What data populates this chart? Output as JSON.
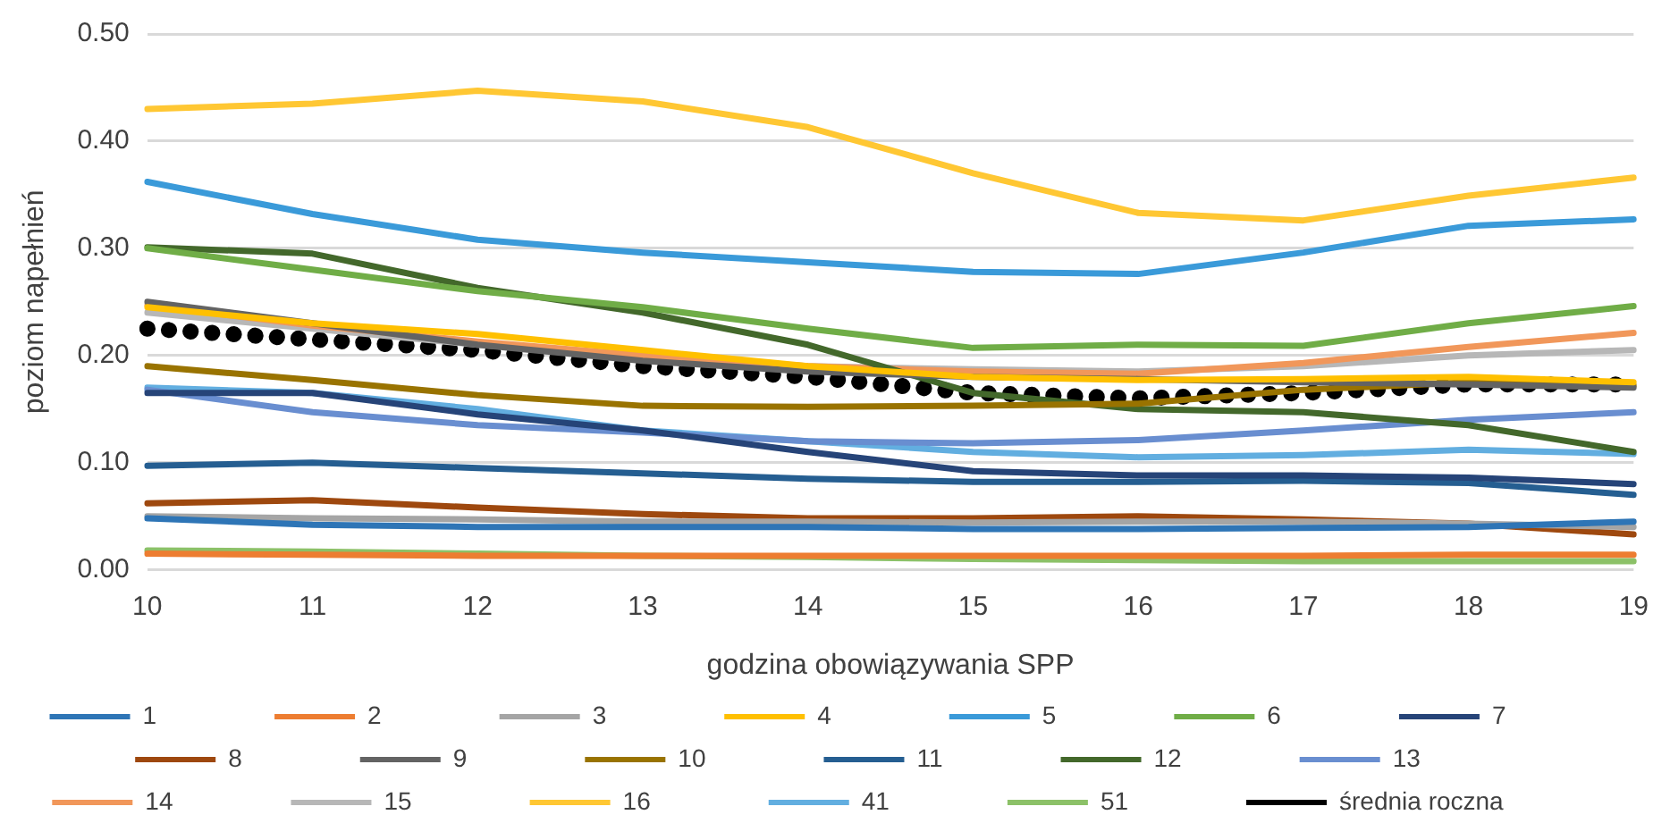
{
  "chart_data": {
    "type": "line",
    "xlabel": "godzina obowiązywania SPP",
    "ylabel": "poziom napełnień",
    "categories": [
      "10",
      "11",
      "12",
      "13",
      "14",
      "15",
      "16",
      "17",
      "18",
      "19"
    ],
    "ylim": [
      0,
      0.5
    ],
    "yticks": [
      {
        "value": 0,
        "label": "0.00"
      },
      {
        "value": 0.1,
        "label": "0.10"
      },
      {
        "value": 0.2,
        "label": "0.20"
      },
      {
        "value": 0.3,
        "label": "0.30"
      },
      {
        "value": 0.4,
        "label": "0.40"
      },
      {
        "value": 0.5,
        "label": "0.50"
      }
    ],
    "grid": "y",
    "legend": "bottom",
    "marker": "none",
    "line_style": "solid",
    "series": [
      {
        "name": "1",
        "color": "#2e75b6",
        "values": [
          0.048,
          0.042,
          0.04,
          0.04,
          0.04,
          0.038,
          0.038,
          0.039,
          0.04,
          0.045
        ]
      },
      {
        "name": "2",
        "color": "#ed7d31",
        "values": [
          0.015,
          0.014,
          0.013,
          0.013,
          0.013,
          0.013,
          0.013,
          0.013,
          0.014,
          0.014
        ]
      },
      {
        "name": "3",
        "color": "#a5a5a5",
        "values": [
          0.05,
          0.048,
          0.047,
          0.045,
          0.045,
          0.044,
          0.045,
          0.045,
          0.043,
          0.04
        ]
      },
      {
        "name": "4",
        "color": "#ffc000",
        "values": [
          0.245,
          0.23,
          0.22,
          0.205,
          0.19,
          0.18,
          0.177,
          0.178,
          0.18,
          0.175
        ]
      },
      {
        "name": "5",
        "color": "#3a9ad9",
        "values": [
          0.362,
          0.332,
          0.308,
          0.296,
          0.287,
          0.278,
          0.276,
          0.296,
          0.321,
          0.327
        ]
      },
      {
        "name": "6",
        "color": "#70ad47",
        "values": [
          0.3,
          0.28,
          0.26,
          0.245,
          0.225,
          0.207,
          0.21,
          0.209,
          0.23,
          0.246
        ]
      },
      {
        "name": "7",
        "color": "#264478",
        "values": [
          0.165,
          0.165,
          0.145,
          0.13,
          0.11,
          0.092,
          0.088,
          0.088,
          0.086,
          0.08
        ]
      },
      {
        "name": "8",
        "color": "#9e480e",
        "values": [
          0.062,
          0.065,
          0.058,
          0.052,
          0.048,
          0.048,
          0.05,
          0.047,
          0.043,
          0.033
        ]
      },
      {
        "name": "9",
        "color": "#636363",
        "values": [
          0.25,
          0.23,
          0.21,
          0.195,
          0.185,
          0.18,
          0.178,
          0.175,
          0.173,
          0.17
        ]
      },
      {
        "name": "10",
        "color": "#997300",
        "values": [
          0.19,
          0.177,
          0.163,
          0.153,
          0.152,
          0.153,
          0.155,
          0.168,
          0.175,
          0.172
        ]
      },
      {
        "name": "11",
        "color": "#255e91",
        "values": [
          0.097,
          0.1,
          0.095,
          0.09,
          0.085,
          0.082,
          0.082,
          0.083,
          0.081,
          0.07
        ]
      },
      {
        "name": "12",
        "color": "#43682b",
        "values": [
          0.301,
          0.295,
          0.263,
          0.24,
          0.21,
          0.165,
          0.15,
          0.147,
          0.135,
          0.11
        ]
      },
      {
        "name": "13",
        "color": "#698ed0",
        "values": [
          0.168,
          0.147,
          0.135,
          0.128,
          0.12,
          0.118,
          0.121,
          0.13,
          0.14,
          0.147
        ]
      },
      {
        "name": "14",
        "color": "#f1975a",
        "values": [
          0.247,
          0.228,
          0.213,
          0.2,
          0.19,
          0.185,
          0.183,
          0.193,
          0.208,
          0.221
        ]
      },
      {
        "name": "15",
        "color": "#b7b7b7",
        "values": [
          0.24,
          0.225,
          0.21,
          0.198,
          0.19,
          0.187,
          0.185,
          0.19,
          0.2,
          0.205
        ]
      },
      {
        "name": "16",
        "color": "#ffc733",
        "values": [
          0.43,
          0.435,
          0.447,
          0.437,
          0.413,
          0.37,
          0.333,
          0.326,
          0.349,
          0.366
        ]
      },
      {
        "name": "41",
        "color": "#62aee0",
        "values": [
          0.17,
          0.165,
          0.15,
          0.13,
          0.12,
          0.11,
          0.105,
          0.107,
          0.112,
          0.108
        ]
      },
      {
        "name": "51",
        "color": "#8cc168",
        "values": [
          0.018,
          0.017,
          0.015,
          0.013,
          0.012,
          0.01,
          0.009,
          0.008,
          0.008,
          0.008
        ]
      },
      {
        "name": "średnia roczna",
        "color": "#000000",
        "line_style": "dotted",
        "values": [
          0.225,
          0.215,
          0.205,
          0.19,
          0.18,
          0.165,
          0.16,
          0.165,
          0.173,
          0.173
        ]
      }
    ]
  }
}
